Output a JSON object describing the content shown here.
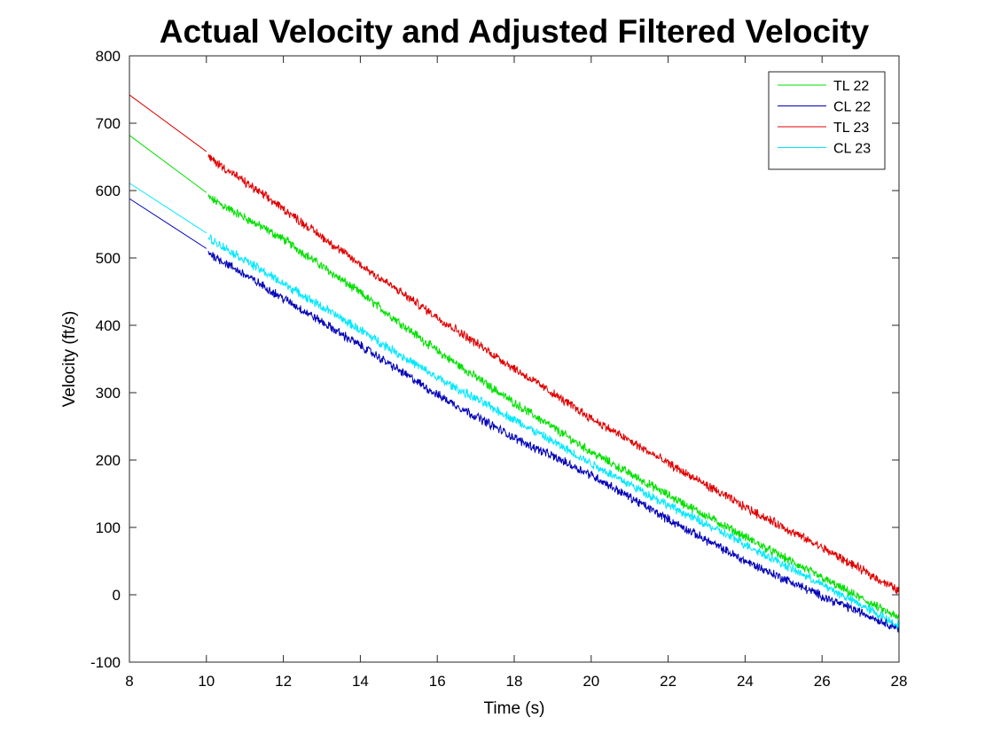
{
  "chart_data": {
    "type": "line",
    "title": "Actual Velocity and Adjusted Filtered Velocity",
    "xlabel": "Time (s)",
    "ylabel": "Velocity (ft/s)",
    "xlim": [
      8,
      28
    ],
    "ylim": [
      -100,
      800
    ],
    "xticks": [
      8,
      10,
      12,
      14,
      16,
      18,
      20,
      22,
      24,
      26,
      28
    ],
    "yticks": [
      -100,
      0,
      100,
      200,
      300,
      400,
      500,
      600,
      700,
      800
    ],
    "grid": false,
    "legend_position": "top-right",
    "series": [
      {
        "name": "TL 22",
        "color": "#00e000",
        "x": [
          8,
          10,
          10.05,
          12,
          14,
          16,
          18,
          20,
          22,
          24,
          26,
          28
        ],
        "y": [
          682,
          597,
          590,
          528,
          448,
          362,
          285,
          212,
          148,
          86,
          25,
          -35
        ]
      },
      {
        "name": "CL 22",
        "color": "#0000b8",
        "x": [
          8,
          10,
          10.05,
          12,
          14,
          16,
          18,
          20,
          22,
          24,
          26,
          28
        ],
        "y": [
          588,
          514,
          508,
          440,
          370,
          297,
          233,
          178,
          112,
          50,
          -2,
          -50
        ]
      },
      {
        "name": "TL 23",
        "color": "#e00000",
        "x": [
          8,
          10,
          10.05,
          12,
          14,
          16,
          18,
          20,
          22,
          24,
          26,
          28
        ],
        "y": [
          742,
          658,
          650,
          573,
          490,
          412,
          336,
          262,
          195,
          130,
          70,
          6
        ]
      },
      {
        "name": "CL 23",
        "color": "#00e8ff",
        "x": [
          8,
          10,
          10.05,
          12,
          14,
          16,
          18,
          20,
          22,
          24,
          26,
          28
        ],
        "y": [
          611,
          537,
          530,
          462,
          393,
          322,
          260,
          195,
          133,
          75,
          15,
          -45
        ]
      }
    ]
  }
}
